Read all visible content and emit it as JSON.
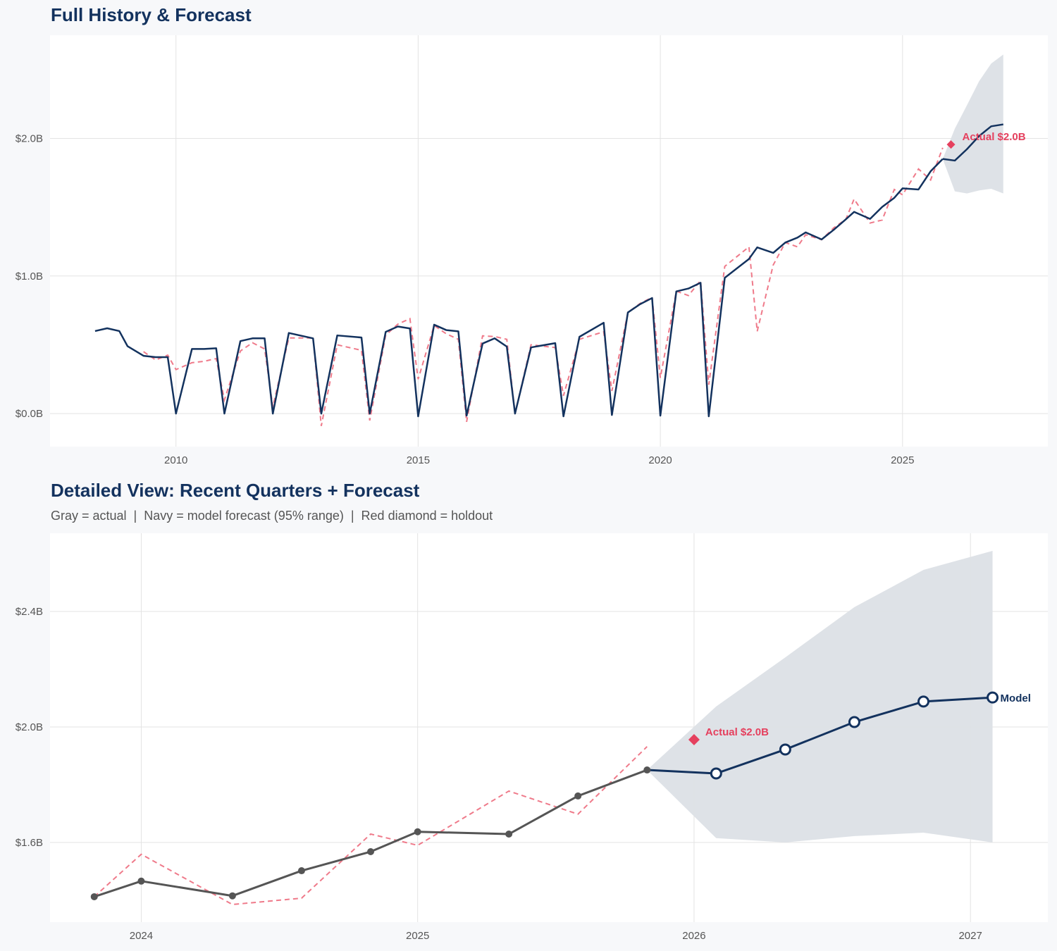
{
  "colors": {
    "actual_navy": "#13325e",
    "actual_gray": "#555555",
    "fitted_dashed": "#ef7a8a",
    "holdout_red": "#e5405e",
    "band": "#dce0e6",
    "grid": "#e3e3e3",
    "plot_bg": "#ffffff"
  },
  "chart_data": [
    {
      "type": "line",
      "title": "Full History & Forecast",
      "xlabel": "",
      "ylabel": "",
      "xlim": [
        2007.4,
        2028.0
      ],
      "ylim": [
        -0.24,
        2.75
      ],
      "x_ticks": [
        2010,
        2015,
        2020,
        2025
      ],
      "x_tick_labels": [
        "2010",
        "2015",
        "2020",
        "2025"
      ],
      "y_ticks": [
        0,
        1,
        2
      ],
      "y_tick_labels": [
        "$0.0B",
        "$1.0B",
        "$2.0B"
      ],
      "grid": true,
      "annotation": "Actual $2.0B"
    },
    {
      "type": "line",
      "title": "Detailed View: Recent Quarters + Forecast",
      "subtitle": "Gray = actual  |  Navy = model forecast (95% range)  |  Red diamond = holdout",
      "xlabel": "",
      "ylabel": "",
      "xlim": [
        2023.67,
        2027.28
      ],
      "ylim": [
        1.324,
        2.671
      ],
      "x_ticks": [
        2024,
        2025,
        2026,
        2027
      ],
      "x_tick_labels": [
        "2024",
        "2025",
        "2026",
        "2027"
      ],
      "y_ticks": [
        1.6,
        2.0,
        2.4
      ],
      "y_tick_labels": [
        "$1.6B",
        "$2.0B",
        "$2.4B"
      ],
      "grid": true,
      "detail_start": 2023.83,
      "annotation": "Actual $2.0B",
      "forecast_label": "Model"
    }
  ],
  "series": {
    "unit": "$B",
    "dates": [
      2008.33,
      2008.58,
      2008.83,
      2009.0,
      2009.33,
      2009.58,
      2009.83,
      2010.0,
      2010.33,
      2010.58,
      2010.83,
      2011.0,
      2011.33,
      2011.58,
      2011.83,
      2012.0,
      2012.33,
      2012.83,
      2013.0,
      2013.33,
      2013.83,
      2014.0,
      2014.33,
      2014.58,
      2014.83,
      2015.0,
      2015.33,
      2015.58,
      2015.83,
      2016.0,
      2016.33,
      2016.58,
      2016.83,
      2017.0,
      2017.33,
      2017.83,
      2018.0,
      2018.33,
      2018.83,
      2019.0,
      2019.33,
      2019.58,
      2019.83,
      2020.0,
      2020.33,
      2020.58,
      2020.83,
      2021.0,
      2021.33,
      2021.83,
      2022.0,
      2022.33,
      2022.58,
      2022.83,
      2023.0,
      2023.33,
      2023.58,
      2023.83,
      2024.0,
      2024.33,
      2024.58,
      2024.83,
      2025.0,
      2025.33,
      2025.58,
      2025.83
    ],
    "actual": [
      0.6,
      0.62,
      0.6,
      0.49,
      0.42,
      0.41,
      0.41,
      0.0,
      0.47,
      0.47,
      0.475,
      0.0,
      0.527,
      0.547,
      0.547,
      0.0,
      0.586,
      0.547,
      0.0,
      0.568,
      0.553,
      0.0,
      0.594,
      0.633,
      0.619,
      -0.02,
      0.646,
      0.607,
      0.598,
      -0.015,
      0.509,
      0.547,
      0.487,
      0.0,
      0.481,
      0.512,
      -0.02,
      0.558,
      0.66,
      -0.01,
      0.735,
      0.795,
      0.84,
      -0.015,
      0.888,
      0.909,
      0.951,
      -0.02,
      0.987,
      1.124,
      1.208,
      1.168,
      1.243,
      1.279,
      1.317,
      1.266,
      1.336,
      1.412,
      1.466,
      1.415,
      1.502,
      1.568,
      1.637,
      1.629,
      1.761,
      1.851
    ],
    "fitted": [
      null,
      null,
      null,
      null,
      0.45,
      0.39,
      0.425,
      0.32,
      0.37,
      0.38,
      0.4,
      0.1,
      0.455,
      0.515,
      0.47,
      0.05,
      0.55,
      0.55,
      -0.09,
      0.5,
      0.46,
      -0.05,
      0.57,
      0.65,
      0.69,
      0.25,
      0.64,
      0.58,
      0.54,
      -0.06,
      0.565,
      0.56,
      0.54,
      0.0,
      0.5,
      0.48,
      0.13,
      0.54,
      0.595,
      0.165,
      0.735,
      0.8,
      0.845,
      0.26,
      0.89,
      0.858,
      0.967,
      0.21,
      1.07,
      1.212,
      0.598,
      1.08,
      1.243,
      1.212,
      1.3,
      1.264,
      1.35,
      1.412,
      1.559,
      1.385,
      1.407,
      1.629,
      1.59,
      1.778,
      1.698,
      1.932
    ],
    "forecast": {
      "dates": [
        2025.83,
        2026.08,
        2026.33,
        2026.58,
        2026.83,
        2027.08
      ],
      "values": [
        1.851,
        1.839,
        1.922,
        2.017,
        2.088,
        2.102
      ],
      "lower": [
        1.851,
        1.615,
        1.6,
        1.622,
        1.634,
        1.6
      ],
      "upper": [
        1.851,
        2.071,
        2.241,
        2.415,
        2.544,
        2.61
      ]
    },
    "holdout": {
      "date": 2026.0,
      "value": 1.956
    }
  }
}
